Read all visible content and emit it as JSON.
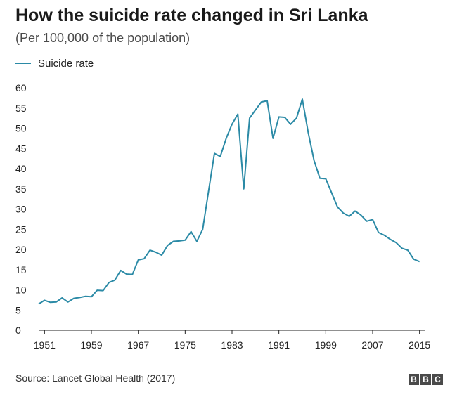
{
  "header": {
    "title": "How the suicide rate changed in Sri Lanka",
    "subtitle": "(Per 100,000 of the population)"
  },
  "footer": {
    "source": "Source: Lancet Global Health (2017)",
    "logo_letters": [
      "B",
      "B",
      "C"
    ]
  },
  "colors": {
    "line": "#2b8aa6",
    "axis": "#222222",
    "grid": "#dddddd"
  },
  "chart_data": {
    "type": "line",
    "title": "How the suicide rate changed in Sri Lanka",
    "subtitle": "(Per 100,000 of the population)",
    "xlabel": "",
    "ylabel": "",
    "xlim": [
      1950,
      2016
    ],
    "ylim": [
      0,
      60
    ],
    "yticks": [
      0,
      5,
      10,
      15,
      20,
      25,
      30,
      35,
      40,
      45,
      50,
      55,
      60
    ],
    "xticks": [
      1951,
      1959,
      1967,
      1975,
      1983,
      1991,
      1999,
      2007,
      2015
    ],
    "grid": false,
    "legend": "top-left",
    "series": [
      {
        "name": "Suicide rate",
        "color": "#2b8aa6",
        "x": [
          1950,
          1951,
          1952,
          1953,
          1954,
          1955,
          1956,
          1957,
          1958,
          1959,
          1960,
          1961,
          1962,
          1963,
          1964,
          1965,
          1966,
          1967,
          1968,
          1969,
          1970,
          1971,
          1972,
          1973,
          1974,
          1975,
          1976,
          1977,
          1978,
          1979,
          1980,
          1981,
          1982,
          1983,
          1984,
          1985,
          1986,
          1987,
          1988,
          1989,
          1990,
          1991,
          1992,
          1993,
          1994,
          1995,
          1996,
          1997,
          1998,
          1999,
          2000,
          2001,
          2002,
          2003,
          2004,
          2005,
          2006,
          2007,
          2008,
          2009,
          2010,
          2011,
          2012,
          2013,
          2014,
          2015
        ],
        "y": [
          6.5,
          7.4,
          6.9,
          7.0,
          8.0,
          7.0,
          7.9,
          8.1,
          8.4,
          8.3,
          9.9,
          9.8,
          11.8,
          12.4,
          14.8,
          13.9,
          13.8,
          17.4,
          17.7,
          19.8,
          19.3,
          18.6,
          21.0,
          22.0,
          22.1,
          22.3,
          24.4,
          22.0,
          25.0,
          34.5,
          43.8,
          43.0,
          47.5,
          51.0,
          53.5,
          35.0,
          52.5,
          54.5,
          56.5,
          56.8,
          47.5,
          52.8,
          52.7,
          51.0,
          52.5,
          57.2,
          49.0,
          42.0,
          37.6,
          37.5,
          34.0,
          30.5,
          29.0,
          28.2,
          29.5,
          28.5,
          27.0,
          27.4,
          24.2,
          23.5,
          22.5,
          21.7,
          20.3,
          19.8,
          17.6,
          17.0
        ]
      }
    ]
  }
}
